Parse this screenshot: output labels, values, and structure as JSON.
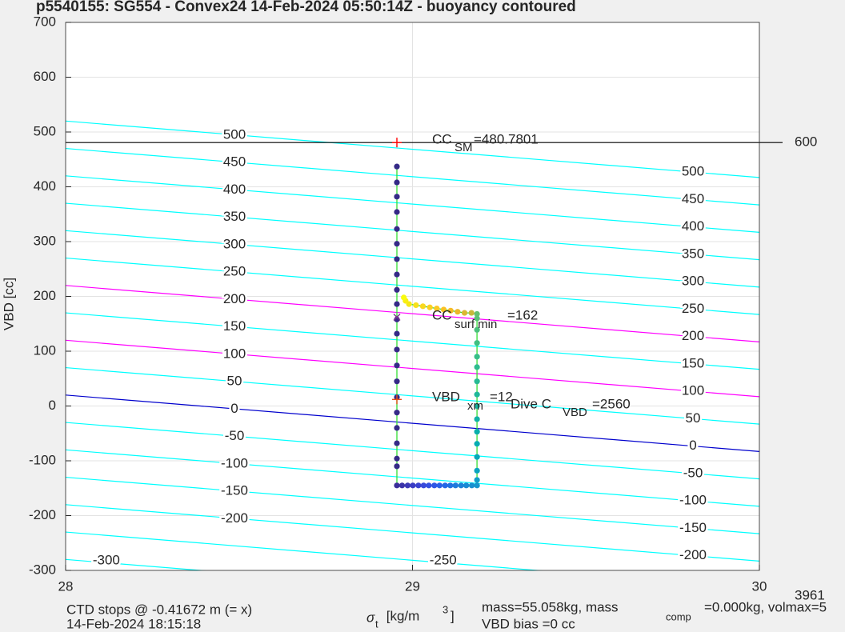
{
  "chart_data": {
    "type": "scatter",
    "title": "p5540155: SG554 - Convex24 14-Feb-2024 05:50:14Z - buoyancy contoured",
    "y_label": "VBD [cc]",
    "x_label": {
      "symbol": "σ",
      "sub": "t",
      "text": " [kg/m",
      "sup": "3",
      "end": "]"
    },
    "xlim": [
      28,
      30
    ],
    "xticks": [
      28,
      29,
      30
    ],
    "ylim": [
      -300,
      700
    ],
    "yticks": [
      -300,
      -200,
      -100,
      0,
      100,
      200,
      300,
      400,
      500,
      600,
      700
    ],
    "grid": true,
    "contour_x": [
      28,
      30
    ],
    "contours": [
      {
        "level": -300,
        "values": [
          -280,
          -383
        ],
        "color": "#00ffff"
      },
      {
        "level": -250,
        "values": [
          -230,
          -333
        ],
        "color": "#00ffff"
      },
      {
        "level": -200,
        "values": [
          -180,
          -283
        ],
        "color": "#00ffff"
      },
      {
        "level": -150,
        "values": [
          -130,
          -233
        ],
        "color": "#00ffff"
      },
      {
        "level": -100,
        "values": [
          -80,
          -183
        ],
        "color": "#00ffff"
      },
      {
        "level": -50,
        "values": [
          -30,
          -133
        ],
        "color": "#00ffff"
      },
      {
        "level": 0,
        "values": [
          20,
          -83
        ],
        "color": "#0000cd"
      },
      {
        "level": 50,
        "values": [
          70,
          -33
        ],
        "color": "#00ffff"
      },
      {
        "level": 100,
        "values": [
          120,
          17
        ],
        "color": "#ff00ff"
      },
      {
        "level": 150,
        "values": [
          170,
          67
        ],
        "color": "#00ffff"
      },
      {
        "level": 200,
        "values": [
          220,
          117
        ],
        "color": "#ff00ff"
      },
      {
        "level": 250,
        "values": [
          270,
          167
        ],
        "color": "#00ffff"
      },
      {
        "level": 300,
        "values": [
          320,
          217
        ],
        "color": "#00ffff"
      },
      {
        "level": 350,
        "values": [
          370,
          267
        ],
        "color": "#00ffff"
      },
      {
        "level": 400,
        "values": [
          420,
          317
        ],
        "color": "#00ffff"
      },
      {
        "level": 450,
        "values": [
          470,
          367
        ],
        "color": "#00ffff"
      },
      {
        "level": 500,
        "values": [
          520,
          417
        ],
        "color": "#00ffff"
      }
    ],
    "reference_lines": [
      {
        "value": 480.7801,
        "color": "#000000"
      }
    ],
    "line_color": "#33dd33",
    "series": [
      {
        "x": [
          28.955,
          28.955,
          28.955,
          28.955,
          28.955,
          28.955,
          28.955,
          28.955,
          28.955,
          28.955,
          28.955,
          28.955,
          28.955,
          28.955,
          28.955,
          28.955,
          28.955,
          28.955,
          28.955,
          28.955,
          28.955,
          28.955,
          28.97,
          28.986,
          29.001,
          29.017,
          29.032,
          29.047,
          29.063,
          29.078,
          29.094,
          29.109,
          29.124,
          29.14,
          29.155,
          29.171,
          29.186,
          29.186,
          29.186,
          29.186,
          29.186,
          29.186,
          29.186,
          29.186,
          29.186,
          29.186,
          29.186,
          29.186,
          29.186,
          29.186,
          29.186,
          29.186,
          29.17,
          29.15,
          29.13,
          29.11,
          29.09,
          29.07,
          29.05,
          29.03,
          29.01,
          28.99,
          28.98,
          28.975
        ],
        "values": [
          437,
          408,
          382,
          354,
          323,
          296,
          268,
          240,
          212,
          186,
          158,
          132,
          103,
          74,
          45,
          16,
          -12,
          -40,
          -68,
          -96,
          -110,
          -145,
          -145,
          -145,
          -145,
          -145,
          -145,
          -145,
          -145,
          -145,
          -145,
          -145,
          -145,
          -145,
          -145,
          -145,
          -145,
          -135,
          -118,
          -93,
          -69,
          -47,
          -24,
          0,
          21,
          45,
          71,
          90,
          115,
          139,
          160,
          168,
          170,
          170,
          172,
          174,
          176,
          178,
          180,
          182,
          184,
          186,
          192,
          198
        ],
        "colors": [
          "#352a87",
          "#352a87",
          "#352a87",
          "#352a87",
          "#352a87",
          "#352a87",
          "#352a87",
          "#352a87",
          "#352a87",
          "#352a87",
          "#352a87",
          "#352a87",
          "#352a87",
          "#352a87",
          "#352a87",
          "#352a87",
          "#352a87",
          "#352a87",
          "#352a87",
          "#352a87",
          "#352a87",
          "#3a2e9a",
          "#3b33a8",
          "#3b38b6",
          "#3b3dc4",
          "#3a43d0",
          "#3849da",
          "#3450e2",
          "#2f57e6",
          "#2960e8",
          "#2468e6",
          "#2071e1",
          "#1e79dc",
          "#1c82d8",
          "#1a8ad4",
          "#178fd0",
          "#1596cd",
          "#0f9dc8",
          "#0aa3c0",
          "#06a8b9",
          "#05acb2",
          "#09afac",
          "#10b2a6",
          "#18b5a0",
          "#20b89a",
          "#27ba94",
          "#2ebc8e",
          "#36be88",
          "#3fbf82",
          "#4bc07c",
          "#56c176",
          "#62c170",
          "#c8b83a",
          "#dbb733",
          "#ebb82c",
          "#f5bb27",
          "#fac123",
          "#fcc822",
          "#fbd021",
          "#f9d81f",
          "#f7e01b",
          "#f6e817",
          "#f8ef12",
          "#f9fb0e"
        ]
      }
    ],
    "markers": [
      {
        "x": 28.955,
        "y": 480.7801,
        "symbol": "+",
        "color": "#ff0000"
      },
      {
        "x": 28.955,
        "y": 162,
        "symbol": "x",
        "color": "#7e2f8e"
      },
      {
        "x": 28.955,
        "y": 12,
        "symbol": "+",
        "color": "#e8501a"
      }
    ],
    "annotations": [
      {
        "text": "CC",
        "sub": "SM",
        "rest": "=480.7801"
      },
      {
        "text": "CC",
        "sub": "surf min",
        "rest": "=162"
      },
      {
        "text": "VBD",
        "sub": "xm",
        "rest": "=12"
      },
      {
        "text": "Dive C",
        "sub": "VBD",
        "rest": "=2560"
      }
    ],
    "footer": {
      "ctd": "CTD stops @ -0.41672 m (= x)",
      "date": "14-Feb-2024 18:15:18",
      "mass": "mass=55.058kg, mass",
      "comp": "comp",
      "volmax": "=0.000kg, volmax=5",
      "bias": "VBD bias =0 cc",
      "side_top": "600",
      "side_bottom": "3961"
    }
  }
}
